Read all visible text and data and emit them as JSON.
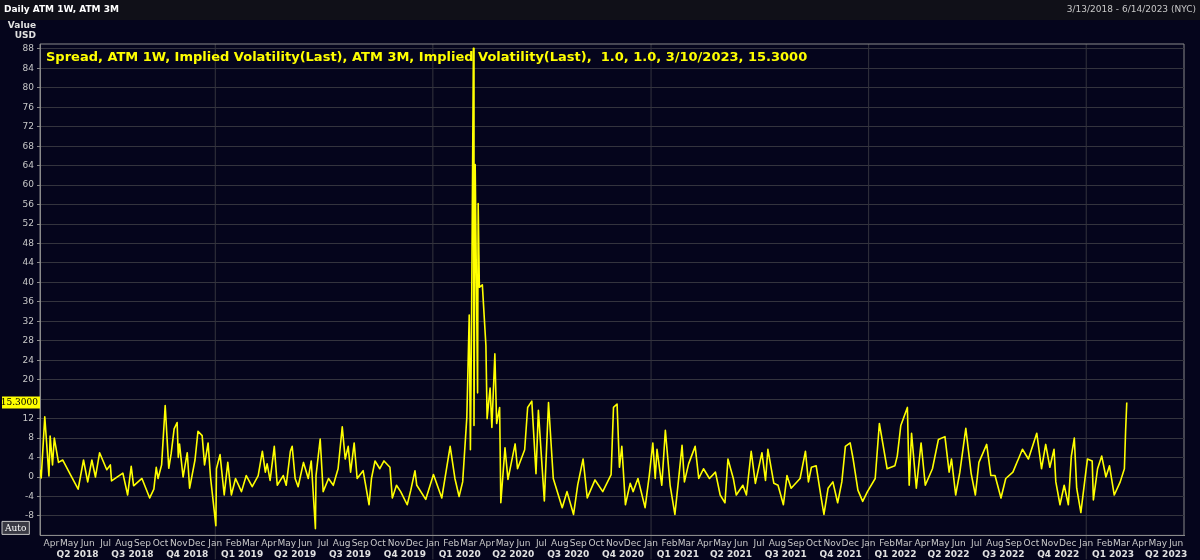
{
  "chart_data": {
    "type": "line",
    "title": "Daily ATM 1W, ATM 3M",
    "subtitle": "3/13/2018 - 6/14/2023 (NYC)",
    "ylabel": "Value USD",
    "annotations": [
      "Auto",
      {
        "text": "15.3000",
        "y": 15.3
      }
    ],
    "legend": "top left",
    "grid": "y",
    "marker": "none",
    "line_style": "solid",
    "xlim": [
      "2018-03-13",
      "2023-06-14"
    ],
    "ylim": [
      -12,
      89
    ],
    "yticks": [
      -8,
      -4,
      0,
      4,
      8,
      12,
      {
        "value": 16,
        "label": null
      },
      20,
      24,
      28,
      32,
      36,
      40,
      44,
      48,
      52,
      56,
      60,
      64,
      68,
      72,
      76,
      80,
      84,
      88
    ],
    "xticks": [
      {
        "value": "2018-04-01",
        "label": "Apr"
      },
      {
        "value": "2018-05-01",
        "label": "May"
      },
      {
        "value": "2018-06-01",
        "label": "Jun"
      },
      {
        "value": "2018-07-01",
        "label": "Jul"
      },
      {
        "value": "2018-08-01",
        "label": "Aug"
      },
      {
        "value": "2018-09-01",
        "label": "Sep"
      },
      {
        "value": "2018-10-01",
        "label": "Oct"
      },
      {
        "value": "2018-11-01",
        "label": "Nov"
      },
      {
        "value": "2018-12-01",
        "label": "Dec"
      },
      {
        "value": "2019-01-01",
        "label": "Jan"
      },
      {
        "value": "2019-02-01",
        "label": "Feb"
      },
      {
        "value": "2019-03-01",
        "label": "Mar"
      },
      {
        "value": "2019-04-01",
        "label": "Apr"
      },
      {
        "value": "2019-05-01",
        "label": "May"
      },
      {
        "value": "2019-06-01",
        "label": "Jun"
      },
      {
        "value": "2019-07-01",
        "label": "Jul"
      },
      {
        "value": "2019-08-01",
        "label": "Aug"
      },
      {
        "value": "2019-09-01",
        "label": "Sep"
      },
      {
        "value": "2019-10-01",
        "label": "Oct"
      },
      {
        "value": "2019-11-01",
        "label": "Nov"
      },
      {
        "value": "2019-12-01",
        "label": "Dec"
      },
      {
        "value": "2020-01-01",
        "label": "Jan"
      },
      {
        "value": "2020-02-01",
        "label": "Feb"
      },
      {
        "value": "2020-03-01",
        "label": "Mar"
      },
      {
        "value": "2020-04-01",
        "label": "Apr"
      },
      {
        "value": "2020-05-01",
        "label": "May"
      },
      {
        "value": "2020-06-01",
        "label": "Jun"
      },
      {
        "value": "2020-07-01",
        "label": "Jul"
      },
      {
        "value": "2020-08-01",
        "label": "Aug"
      },
      {
        "value": "2020-09-01",
        "label": "Sep"
      },
      {
        "value": "2020-10-01",
        "label": "Oct"
      },
      {
        "value": "2020-11-01",
        "label": "Nov"
      },
      {
        "value": "2020-12-01",
        "label": "Dec"
      },
      {
        "value": "2021-01-01",
        "label": "Jan"
      },
      {
        "value": "2021-02-01",
        "label": "Feb"
      },
      {
        "value": "2021-03-01",
        "label": "Mar"
      },
      {
        "value": "2021-04-01",
        "label": "Apr"
      },
      {
        "value": "2021-05-01",
        "label": "May"
      },
      {
        "value": "2021-06-01",
        "label": "Jun"
      },
      {
        "value": "2021-07-01",
        "label": "Jul"
      },
      {
        "value": "2021-08-01",
        "label": "Aug"
      },
      {
        "value": "2021-09-01",
        "label": "Sep"
      },
      {
        "value": "2021-10-01",
        "label": "Oct"
      },
      {
        "value": "2021-11-01",
        "label": "Nov"
      },
      {
        "value": "2021-12-01",
        "label": "Dec"
      },
      {
        "value": "2022-01-01",
        "label": "Jan"
      },
      {
        "value": "2022-02-01",
        "label": "Feb"
      },
      {
        "value": "2022-03-01",
        "label": "Mar"
      },
      {
        "value": "2022-04-01",
        "label": "Apr"
      },
      {
        "value": "2022-05-01",
        "label": "May"
      },
      {
        "value": "2022-06-01",
        "label": "Jun"
      },
      {
        "value": "2022-07-01",
        "label": "Jul"
      },
      {
        "value": "2022-08-01",
        "label": "Aug"
      },
      {
        "value": "2022-09-01",
        "label": "Sep"
      },
      {
        "value": "2022-10-01",
        "label": "Oct"
      },
      {
        "value": "2022-11-01",
        "label": "Nov"
      },
      {
        "value": "2022-12-01",
        "label": "Dec"
      },
      {
        "value": "2023-01-01",
        "label": "Jan"
      },
      {
        "value": "2023-02-01",
        "label": "Feb"
      },
      {
        "value": "2023-03-01",
        "label": "Mar"
      },
      {
        "value": "2023-04-01",
        "label": "Apr"
      },
      {
        "value": "2023-05-01",
        "label": "May"
      },
      {
        "value": "2023-06-01",
        "label": "Jun"
      }
    ],
    "x2lim": [
      "2018-03-13",
      "2023-06-14"
    ],
    "x2ticks": [
      {
        "value": "2018-05-15",
        "label": "Q2 2018"
      },
      {
        "value": "2018-08-15",
        "label": "Q3 2018"
      },
      {
        "value": "2018-11-15",
        "label": "Q4 2018"
      },
      {
        "value": "2019-02-15",
        "label": "Q1 2019"
      },
      {
        "value": "2019-05-15",
        "label": "Q2 2019"
      },
      {
        "value": "2019-08-15",
        "label": "Q3 2019"
      },
      {
        "value": "2019-11-15",
        "label": "Q4 2019"
      },
      {
        "value": "2020-02-15",
        "label": "Q1 2020"
      },
      {
        "value": "2020-05-15",
        "label": "Q2 2020"
      },
      {
        "value": "2020-08-15",
        "label": "Q3 2020"
      },
      {
        "value": "2020-11-15",
        "label": "Q4 2020"
      },
      {
        "value": "2021-02-15",
        "label": "Q1 2021"
      },
      {
        "value": "2021-05-15",
        "label": "Q2 2021"
      },
      {
        "value": "2021-08-15",
        "label": "Q3 2021"
      },
      {
        "value": "2021-11-15",
        "label": "Q4 2021"
      },
      {
        "value": "2022-02-15",
        "label": "Q1 2022"
      },
      {
        "value": "2022-05-15",
        "label": "Q2 2022"
      },
      {
        "value": "2022-08-15",
        "label": "Q3 2022"
      },
      {
        "value": "2022-11-15",
        "label": "Q4 2022"
      },
      {
        "value": "2023-02-15",
        "label": "Q1 2023"
      },
      {
        "value": "2023-05-15",
        "label": "Q2 2023"
      }
    ],
    "ref_lines": [
      {
        "axis": "x",
        "value": "2019-01-01",
        "color": "#34343e"
      },
      {
        "axis": "x",
        "value": "2020-01-01",
        "color": "#34343e"
      },
      {
        "axis": "x",
        "value": "2021-01-01",
        "color": "#34343e"
      },
      {
        "axis": "x",
        "value": "2022-01-01",
        "color": "#34343e"
      },
      {
        "axis": "x",
        "value": "2023-01-01",
        "color": "#34343e"
      }
    ],
    "series": [
      {
        "name": "Spread, ATM 1W, Implied Volatility(Last), ATM 3M, Implied Volatility(Last),  1.0, 1.0, 3/10/2023, 15.3000",
        "color": "#ffff00",
        "x": [
          "2018-03-13",
          "2018-03-15",
          "2018-03-21",
          "2018-03-28",
          "2018-03-30",
          "2018-04-03",
          "2018-04-06",
          "2018-04-13",
          "2018-04-20",
          "2018-05-03",
          "2018-05-16",
          "2018-05-25",
          "2018-06-01",
          "2018-06-08",
          "2018-06-14",
          "2018-06-21",
          "2018-07-03",
          "2018-07-09",
          "2018-07-11",
          "2018-07-30",
          "2018-08-07",
          "2018-08-13",
          "2018-08-17",
          "2018-08-31",
          "2018-09-13",
          "2018-09-20",
          "2018-09-24",
          "2018-09-27",
          "2018-10-03",
          "2018-10-09",
          "2018-10-15",
          "2018-10-19",
          "2018-10-24",
          "2018-10-29",
          "2018-10-31",
          "2018-11-02",
          "2018-11-08",
          "2018-11-15",
          "2018-11-19",
          "2018-11-28",
          "2018-12-03",
          "2018-12-10",
          "2018-12-14",
          "2018-12-20",
          "2018-12-24",
          "2019-01-02",
          "2019-01-03",
          "2019-01-09",
          "2019-01-16",
          "2019-01-22",
          "2019-01-28",
          "2019-02-04",
          "2019-02-14",
          "2019-02-22",
          "2019-03-04",
          "2019-03-14",
          "2019-03-21",
          "2019-03-26",
          "2019-03-29",
          "2019-04-03",
          "2019-04-10",
          "2019-04-15",
          "2019-04-25",
          "2019-04-30",
          "2019-05-07",
          "2019-05-10",
          "2019-05-15",
          "2019-05-20",
          "2019-05-29",
          "2019-06-06",
          "2019-06-11",
          "2019-06-18",
          "2019-06-19",
          "2019-06-26",
          "2019-07-01",
          "2019-07-10",
          "2019-07-18",
          "2019-07-26",
          "2019-08-02",
          "2019-08-07",
          "2019-08-12",
          "2019-08-16",
          "2019-08-22",
          "2019-08-27",
          "2019-09-06",
          "2019-09-16",
          "2019-09-20",
          "2019-09-26",
          "2019-10-04",
          "2019-10-11",
          "2019-10-21",
          "2019-10-25",
          "2019-11-01",
          "2019-11-08",
          "2019-11-19",
          "2019-11-25",
          "2019-12-02",
          "2019-12-05",
          "2019-12-20",
          "2020-01-02",
          "2020-01-16",
          "2020-01-30",
          "2020-02-07",
          "2020-02-14",
          "2020-02-20",
          "2020-02-27",
          "2020-03-02",
          "2020-03-04",
          "2020-03-06",
          "2020-03-09",
          "2020-03-10",
          "2020-03-12",
          "2020-03-13",
          "2020-03-16",
          "2020-03-17",
          "2020-03-19",
          "2020-03-24",
          "2020-03-30",
          "2020-04-01",
          "2020-04-06",
          "2020-04-09",
          "2020-04-14",
          "2020-04-17",
          "2020-04-22",
          "2020-04-24",
          "2020-05-01",
          "2020-05-06",
          "2020-05-18",
          "2020-05-22",
          "2020-06-03",
          "2020-06-08",
          "2020-06-15",
          "2020-06-22",
          "2020-06-26",
          "2020-07-06",
          "2020-07-13",
          "2020-07-21",
          "2020-08-05",
          "2020-08-13",
          "2020-08-24",
          "2020-08-31",
          "2020-09-09",
          "2020-09-16",
          "2020-09-29",
          "2020-10-12",
          "2020-10-26",
          "2020-10-30",
          "2020-11-05",
          "2020-11-09",
          "2020-11-13",
          "2020-11-19",
          "2020-11-27",
          "2020-12-02",
          "2020-12-10",
          "2020-12-22",
          "2020-12-29",
          "2021-01-04",
          "2021-01-08",
          "2021-01-11",
          "2021-01-19",
          "2021-01-25",
          "2021-02-02",
          "2021-02-10",
          "2021-02-16",
          "2021-02-22",
          "2021-02-26",
          "2021-03-05",
          "2021-03-16",
          "2021-03-22",
          "2021-03-30",
          "2021-04-09",
          "2021-04-19",
          "2021-04-27",
          "2021-05-05",
          "2021-05-10",
          "2021-05-19",
          "2021-05-24",
          "2021-06-04",
          "2021-06-10",
          "2021-06-18",
          "2021-06-25",
          "2021-07-06",
          "2021-07-12",
          "2021-07-16",
          "2021-07-26",
          "2021-08-02",
          "2021-08-11",
          "2021-08-17",
          "2021-08-24",
          "2021-09-08",
          "2021-09-17",
          "2021-09-22",
          "2021-09-27",
          "2021-10-05",
          "2021-10-13",
          "2021-10-18",
          "2021-10-25",
          "2021-11-02",
          "2021-11-10",
          "2021-11-17",
          "2021-11-23",
          "2021-12-01",
          "2021-12-06",
          "2021-12-14",
          "2021-12-22",
          "2021-12-30",
          "2022-01-12",
          "2022-01-19",
          "2022-01-25",
          "2022-02-01",
          "2022-02-14",
          "2022-02-18",
          "2022-02-24",
          "2022-03-07",
          "2022-03-10",
          "2022-03-14",
          "2022-03-22",
          "2022-03-30",
          "2022-04-06",
          "2022-04-18",
          "2022-04-28",
          "2022-05-09",
          "2022-05-16",
          "2022-05-20",
          "2022-05-27",
          "2022-06-03",
          "2022-06-13",
          "2022-06-22",
          "2022-06-29",
          "2022-07-05",
          "2022-07-18",
          "2022-07-25",
          "2022-08-01",
          "2022-08-11",
          "2022-08-19",
          "2022-08-31",
          "2022-09-16",
          "2022-09-26",
          "2022-10-10",
          "2022-10-18",
          "2022-10-25",
          "2022-11-01",
          "2022-11-08",
          "2022-11-11",
          "2022-11-18",
          "2022-11-25",
          "2022-12-02",
          "2022-12-07",
          "2022-12-12",
          "2022-12-16",
          "2022-12-23",
          "2022-12-28",
          "2023-01-03",
          "2023-01-11",
          "2023-01-13",
          "2023-01-20",
          "2023-01-27",
          "2023-02-03",
          "2023-02-09",
          "2023-02-17",
          "2023-02-27",
          "2023-03-06",
          "2023-03-08",
          "2023-03-10"
        ],
        "values": [
          1.5,
          -0.2,
          12.4,
          0.2,
          8.4,
          2.5,
          8,
          3,
          3.5,
          0.5,
          -2.5,
          3.5,
          -1,
          3.5,
          0,
          5,
          1.5,
          2.5,
          -0.8,
          0.8,
          -3.7,
          2.2,
          -1.8,
          -0.3,
          -4.3,
          -2.5,
          2,
          -0.3,
          2.5,
          14.7,
          1.8,
          4.8,
          9.9,
          11.2,
          4,
          6.8,
          0,
          5,
          -2.3,
          3.5,
          9.4,
          8.5,
          2.5,
          7,
          0,
          -10,
          1.7,
          4.6,
          -3.7,
          3,
          -3.7,
          -0.3,
          -3,
          0.3,
          -2,
          0.3,
          5.3,
          1,
          2.7,
          -0.7,
          6.3,
          -1.7,
          0.3,
          -1.7,
          5.3,
          6.3,
          -0.3,
          -2,
          3,
          -0.3,
          3.3,
          -10.6,
          0.3,
          7.8,
          -3,
          -0.3,
          -1.7,
          1.7,
          10.3,
          3.7,
          6.3,
          1,
          7,
          -0.3,
          1.3,
          -5.7,
          -0.3,
          3.3,
          1.7,
          3.3,
          2,
          -4.3,
          -1.7,
          -3,
          -5.7,
          -2.7,
          1.3,
          -1.7,
          -4.6,
          0.5,
          -4.3,
          6.3,
          -0.3,
          -4,
          -1,
          12.3,
          33.3,
          5.6,
          33,
          88.1,
          10.6,
          64.2,
          64.2,
          17.3,
          56.2,
          39,
          39.5,
          27,
          12,
          18.3,
          10.2,
          25.3,
          11,
          14.3,
          -5.3,
          6,
          -0.5,
          6.8,
          1.7,
          5.6,
          14.3,
          15.6,
          0.7,
          13.7,
          -4.9,
          15.3,
          -0.3,
          -6.3,
          -3,
          -7.7,
          -1.6,
          3.7,
          -4.3,
          -0.6,
          -3,
          0.5,
          14.3,
          15,
          2,
          6.3,
          -5.7,
          -1.3,
          -3,
          -0.3,
          -6.3,
          0.3,
          7,
          -0.3,
          5.7,
          -1.7,
          9.6,
          -1.7,
          -7.7,
          -0.7,
          6.5,
          -1,
          2.7,
          6.3,
          -0.3,
          1.7,
          -0.3,
          1,
          -3.7,
          -5.3,
          3.7,
          -0.3,
          -3.7,
          -1.7,
          -3.7,
          5.3,
          -1.3,
          5,
          -0.7,
          5.7,
          -1.3,
          -1.7,
          -5.7,
          0.3,
          -2.3,
          -0.3,
          5.3,
          -1,
          2,
          2.3,
          -4,
          -7.7,
          -2.3,
          -1,
          -5.3,
          -1,
          6.3,
          7,
          3.7,
          -2.7,
          -5,
          -3,
          -0.3,
          11,
          6.7,
          1.7,
          2.3,
          4.3,
          10.6,
          14.3,
          -1.7,
          9,
          -2.3,
          7,
          -1.7,
          1.7,
          7.7,
          8.3,
          1,
          3.7,
          -3.7,
          1,
          10,
          0.7,
          -3.7,
          3,
          6.7,
          0.3,
          0.3,
          -4.3,
          -0.3,
          1,
          5.7,
          3.7,
          9,
          1.7,
          6.7,
          2,
          5.7,
          -1,
          -5.7,
          -1.7,
          -5.7,
          4.3,
          8,
          -2.3,
          -7.3,
          -2.3,
          3.7,
          3.3,
          -4.7,
          1.7,
          4.3,
          0,
          2.3,
          -3.7,
          -1,
          1.7,
          9.3,
          15.3
        ]
      }
    ]
  }
}
